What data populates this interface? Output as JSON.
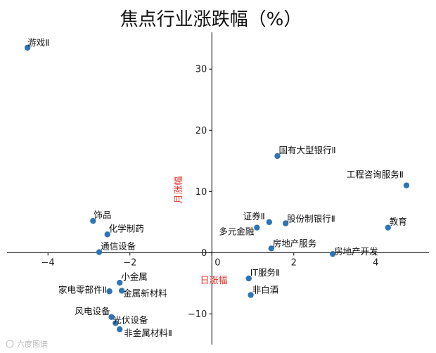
{
  "chart_data": {
    "type": "scatter",
    "title": "焦点行业涨跌幅（%）",
    "xlabel": "日涨幅",
    "ylabel": "月涨幅",
    "xlim": [
      -5.0,
      5.3
    ],
    "ylim": [
      -15.0,
      36.0
    ],
    "x_ticks": [
      -4,
      -2,
      0,
      2,
      4
    ],
    "y_ticks": [
      -10,
      0,
      10,
      20,
      30
    ],
    "x_tick_labels": [
      "−4",
      "−2",
      "0",
      "2",
      "4"
    ],
    "y_tick_labels": [
      "−10",
      "0",
      "10",
      "20",
      "30"
    ],
    "axis_style": "centered-spines",
    "grid": false,
    "marker_color": "#2f75b5",
    "label_color": "#e8302a",
    "watermark": "六度图谱",
    "points": [
      {
        "name": "游戏Ⅱ",
        "x": -4.5,
        "y": 33.5
      },
      {
        "name": "国有大型银行Ⅱ",
        "x": 1.6,
        "y": 15.8
      },
      {
        "name": "工程咨询服务Ⅱ",
        "x": 4.75,
        "y": 11.0
      },
      {
        "name": "饰品",
        "x": -2.9,
        "y": 5.2
      },
      {
        "name": "化学制药",
        "x": -2.55,
        "y": 3.0
      },
      {
        "name": "通信设备",
        "x": -2.75,
        "y": 0.1
      },
      {
        "name": "证券Ⅱ",
        "x": 1.4,
        "y": 5.0
      },
      {
        "name": "多元金融",
        "x": 1.1,
        "y": 4.1
      },
      {
        "name": "股份制银行Ⅱ",
        "x": 1.8,
        "y": 4.8
      },
      {
        "name": "教育",
        "x": 4.3,
        "y": 4.1
      },
      {
        "name": "房地产服务",
        "x": 1.45,
        "y": 0.7
      },
      {
        "name": "房地产开发",
        "x": 2.95,
        "y": -0.2
      },
      {
        "name": "小金属",
        "x": -2.25,
        "y": -4.9
      },
      {
        "name": "家电零部件Ⅱ",
        "x": -2.5,
        "y": -6.3
      },
      {
        "name": "金属新材料",
        "x": -2.2,
        "y": -6.2
      },
      {
        "name": "IT服务Ⅱ",
        "x": 0.9,
        "y": -4.2
      },
      {
        "name": "非白酒",
        "x": 0.95,
        "y": -6.9
      },
      {
        "name": "风电设备",
        "x": -2.45,
        "y": -10.5
      },
      {
        "name": "光伏设备",
        "x": -2.35,
        "y": -11.5
      },
      {
        "name": "非金属材料Ⅱ",
        "x": -2.25,
        "y": -12.5
      }
    ]
  }
}
